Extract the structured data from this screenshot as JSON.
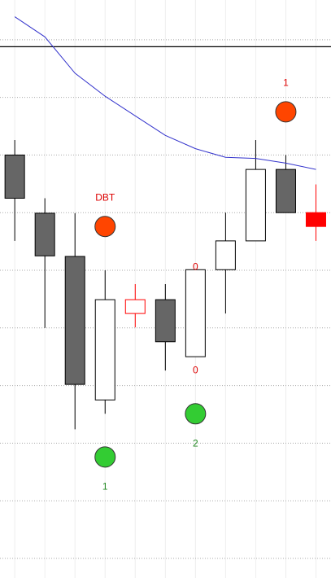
{
  "chart_data": {
    "type": "candlestick",
    "x": [
      0,
      1,
      2,
      3,
      4,
      5,
      6,
      7,
      8,
      9,
      10
    ],
    "open": [
      8.0,
      6.99,
      6.24,
      3.75,
      5.25,
      5.49,
      4.5,
      6.01,
      6.51,
      7.75,
      7.0
    ],
    "high": [
      8.26,
      7.25,
      6.99,
      6.0,
      5.76,
      5.76,
      6.01,
      7.0,
      8.26,
      8.0,
      7.49
    ],
    "low": [
      6.51,
      5.0,
      3.24,
      3.51,
      5.01,
      4.26,
      4.5,
      5.25,
      6.51,
      7.0,
      6.51
    ],
    "close": [
      7.25,
      6.25,
      4.02,
      5.49,
      5.49,
      4.76,
      6.01,
      6.51,
      7.75,
      7.0,
      6.76
    ],
    "candle_fill": [
      "#666666",
      "#666666",
      "#666666",
      "#ffffff",
      "#ffffff",
      "#666666",
      "#ffffff",
      "#ffffff",
      "#ffffff",
      "#666666",
      "#ff0000"
    ],
    "candle_stroke": [
      "#000000",
      "#000000",
      "#000000",
      "#000000",
      "#ff0000",
      "#000000",
      "#000000",
      "#000000",
      "#000000",
      "#000000",
      "#ff0000"
    ],
    "line": {
      "color": "#3333cc",
      "values": [
        10.4,
        10.05,
        9.42,
        9.02,
        8.68,
        8.34,
        8.11,
        7.96,
        7.94,
        7.86,
        7.75
      ]
    },
    "hline": {
      "value": 9.88,
      "color": "#000000"
    },
    "markers": [
      {
        "x": 3,
        "y": 6.76,
        "color": "#ff4500",
        "label": "DBT",
        "label_color": "#dd0000",
        "label_pos": "above"
      },
      {
        "x": 9,
        "y": 8.75,
        "color": "#ff4500",
        "label": "1",
        "label_color": "#dd0000",
        "label_pos": "above"
      },
      {
        "x": 3,
        "y": 2.76,
        "color": "#33cc33",
        "label": "1",
        "label_color": "#228822",
        "label_pos": "below"
      },
      {
        "x": 6,
        "y": 3.51,
        "color": "#33cc33",
        "label": "2",
        "label_color": "#228822",
        "label_pos": "below"
      }
    ],
    "texts": [
      {
        "x": 6,
        "y": 4.26,
        "label": "0",
        "color": "#dd0000"
      },
      {
        "x": 6,
        "y": 6.05,
        "label": "0",
        "color": "#dd0000"
      }
    ],
    "xlim": [
      -0.49,
      10.5
    ],
    "ylim": [
      0.66,
      10.69
    ],
    "ygrid": [
      1,
      2,
      3,
      4,
      5,
      6,
      7,
      8,
      9,
      10
    ],
    "xgrid": true
  }
}
